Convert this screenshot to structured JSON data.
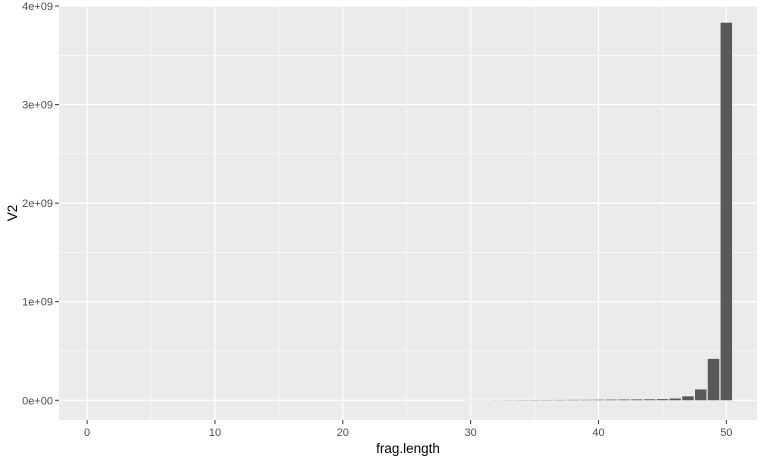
{
  "chart_data": {
    "type": "bar",
    "title": "",
    "xlabel": "frag.length",
    "ylabel": "V2",
    "xlim": [
      -2.2,
      52.4
    ],
    "ylim": [
      -200000000,
      4000000000
    ],
    "x_ticks": [
      0,
      10,
      20,
      30,
      40,
      50
    ],
    "x_tick_labels": [
      "0",
      "10",
      "20",
      "30",
      "40",
      "50"
    ],
    "y_ticks": [
      0,
      1000000000,
      2000000000,
      3000000000,
      4000000000
    ],
    "y_tick_labels": [
      "0e+00",
      "1e+09",
      "2e+09",
      "3e+09",
      "4e+09"
    ],
    "grid": true,
    "legend": "none",
    "colors": {
      "panel": "#ebebeb",
      "grid_major": "#ffffff",
      "bar": "#595959",
      "tick": "#333333"
    },
    "x": [
      0,
      1,
      2,
      3,
      4,
      5,
      6,
      7,
      8,
      9,
      10,
      11,
      12,
      13,
      14,
      15,
      16,
      17,
      18,
      19,
      20,
      21,
      22,
      23,
      24,
      25,
      26,
      27,
      28,
      29,
      30,
      31,
      32,
      33,
      34,
      35,
      36,
      37,
      38,
      39,
      40,
      41,
      42,
      43,
      44,
      45,
      46,
      47,
      48,
      49,
      50
    ],
    "values": [
      0,
      0,
      0,
      0,
      0,
      0,
      0,
      0,
      0,
      0,
      0,
      0,
      0,
      0,
      0,
      0,
      0,
      0,
      0,
      0,
      0,
      0,
      0,
      0,
      0,
      0,
      0,
      0,
      0,
      0,
      1000000,
      1000000,
      1500000,
      2000000,
      2500000,
      3000000,
      3500000,
      4000000,
      4500000,
      5000000,
      6000000,
      7000000,
      8000000,
      9000000,
      10000000,
      12000000,
      18000000,
      40000000,
      110000000,
      420000000,
      3830000000
    ]
  }
}
